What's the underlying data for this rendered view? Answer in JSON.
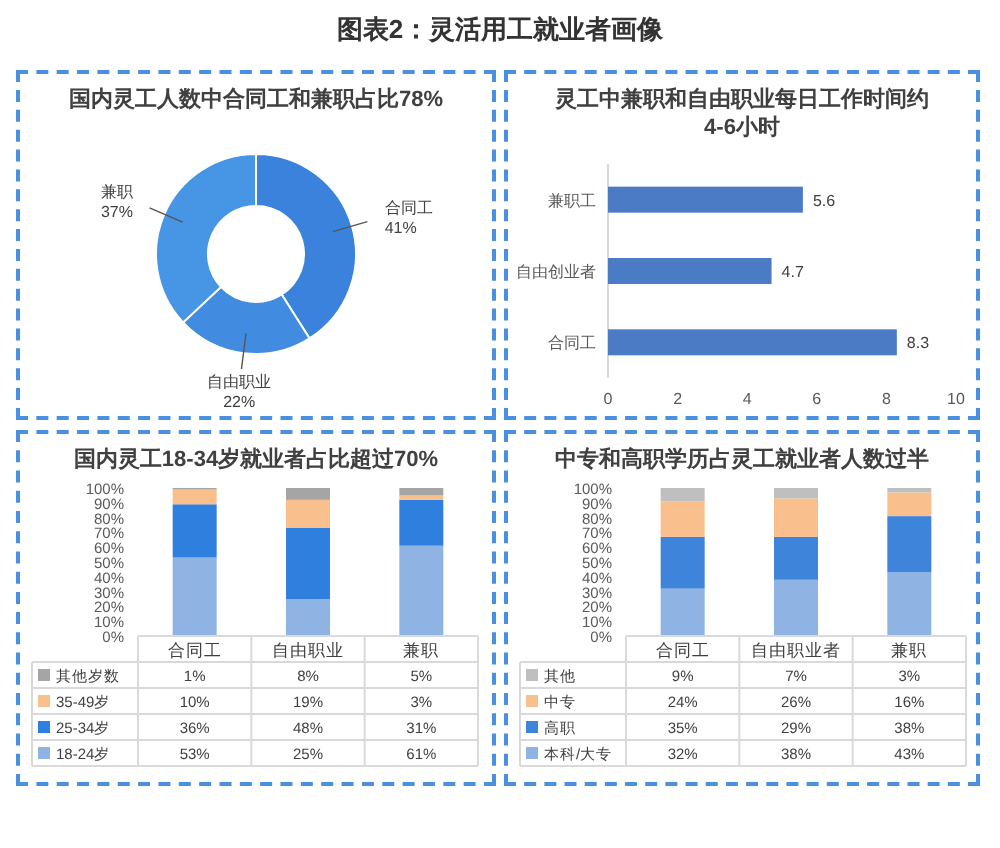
{
  "chart_data": [
    {
      "type": "donut",
      "annotations": [
        "图表2：灵活用工就业者画像"
      ],
      "title": "国内灵工人数中合同工和兼职占比78%",
      "categories": [
        "合同工",
        "自由职业",
        "兼职"
      ],
      "values": [
        41,
        22,
        37
      ],
      "colors": [
        "#3b82dc",
        "#418ce0",
        "#4796e6"
      ],
      "value_labels": [
        "41%",
        "22%",
        "37%"
      ]
    },
    {
      "type": "bar",
      "orientation": "horizontal",
      "title": "灵工中兼职和自由职业每日工作时间约4-6小时",
      "categories": [
        "兼职工",
        "自由创业者",
        "合同工"
      ],
      "values": [
        5.6,
        4.7,
        8.3
      ],
      "color": "#4a7bc4",
      "xlim": [
        0,
        10
      ],
      "xticks": [
        0,
        2,
        4,
        6,
        8,
        10
      ],
      "data_labels": true
    },
    {
      "type": "bar",
      "stacked": true,
      "legend": "bottom",
      "title": "国内灵工18-34岁就业者占比超过70%",
      "categories": [
        "合同工",
        "自由职业",
        "兼职"
      ],
      "ylim": [
        0,
        100
      ],
      "yticks": [
        {
          "value": 0,
          "label": "0%"
        },
        {
          "value": 10,
          "label": "10%"
        },
        {
          "value": 20,
          "label": "20%"
        },
        {
          "value": 30,
          "label": "30%"
        },
        {
          "value": 40,
          "label": "40%"
        },
        {
          "value": 50,
          "label": "50%"
        },
        {
          "value": 60,
          "label": "60%"
        },
        {
          "value": 70,
          "label": "70%"
        },
        {
          "value": 80,
          "label": "80%"
        },
        {
          "value": 90,
          "label": "90%"
        },
        {
          "value": 100,
          "label": "100%"
        }
      ],
      "series": [
        {
          "name": "18-24岁",
          "color": "#8fb3e3",
          "values": [
            53,
            25,
            61
          ],
          "value_labels": [
            "53%",
            "25%",
            "61%"
          ]
        },
        {
          "name": "25-34岁",
          "color": "#2f7fdf",
          "values": [
            36,
            48,
            31
          ],
          "value_labels": [
            "36%",
            "48%",
            "31%"
          ]
        },
        {
          "name": "35-49岁",
          "color": "#f9bf8d",
          "values": [
            10,
            19,
            3
          ],
          "value_labels": [
            "10%",
            "19%",
            "3%"
          ]
        },
        {
          "name": "其他岁数",
          "color": "#a5a5a5",
          "values": [
            1,
            8,
            5
          ],
          "value_labels": [
            "1%",
            "8%",
            "5%"
          ]
        }
      ]
    },
    {
      "type": "bar",
      "stacked": true,
      "legend": "bottom",
      "title": "中专和高职学历占灵工就业者人数过半",
      "categories": [
        "合同工",
        "自由职业者",
        "兼职"
      ],
      "ylim": [
        0,
        100
      ],
      "yticks": [
        {
          "value": 0,
          "label": "0%"
        },
        {
          "value": 10,
          "label": "10%"
        },
        {
          "value": 20,
          "label": "20%"
        },
        {
          "value": 30,
          "label": "30%"
        },
        {
          "value": 40,
          "label": "40%"
        },
        {
          "value": 50,
          "label": "50%"
        },
        {
          "value": 60,
          "label": "60%"
        },
        {
          "value": 70,
          "label": "70%"
        },
        {
          "value": 80,
          "label": "80%"
        },
        {
          "value": 90,
          "label": "90%"
        },
        {
          "value": 100,
          "label": "100%"
        }
      ],
      "series": [
        {
          "name": "本科/大专",
          "color": "#8fb3e3",
          "values": [
            32,
            38,
            43
          ],
          "value_labels": [
            "32%",
            "38%",
            "43%"
          ]
        },
        {
          "name": "高职",
          "color": "#3d84da",
          "values": [
            35,
            29,
            38
          ],
          "value_labels": [
            "35%",
            "29%",
            "38%"
          ]
        },
        {
          "name": "中专",
          "color": "#f9bf8d",
          "values": [
            24,
            26,
            16
          ],
          "value_labels": [
            "24%",
            "26%",
            "16%"
          ]
        },
        {
          "name": "其他",
          "color": "#bfbfbf",
          "values": [
            9,
            7,
            3
          ],
          "value_labels": [
            "9%",
            "7%",
            "3%"
          ]
        }
      ]
    }
  ]
}
